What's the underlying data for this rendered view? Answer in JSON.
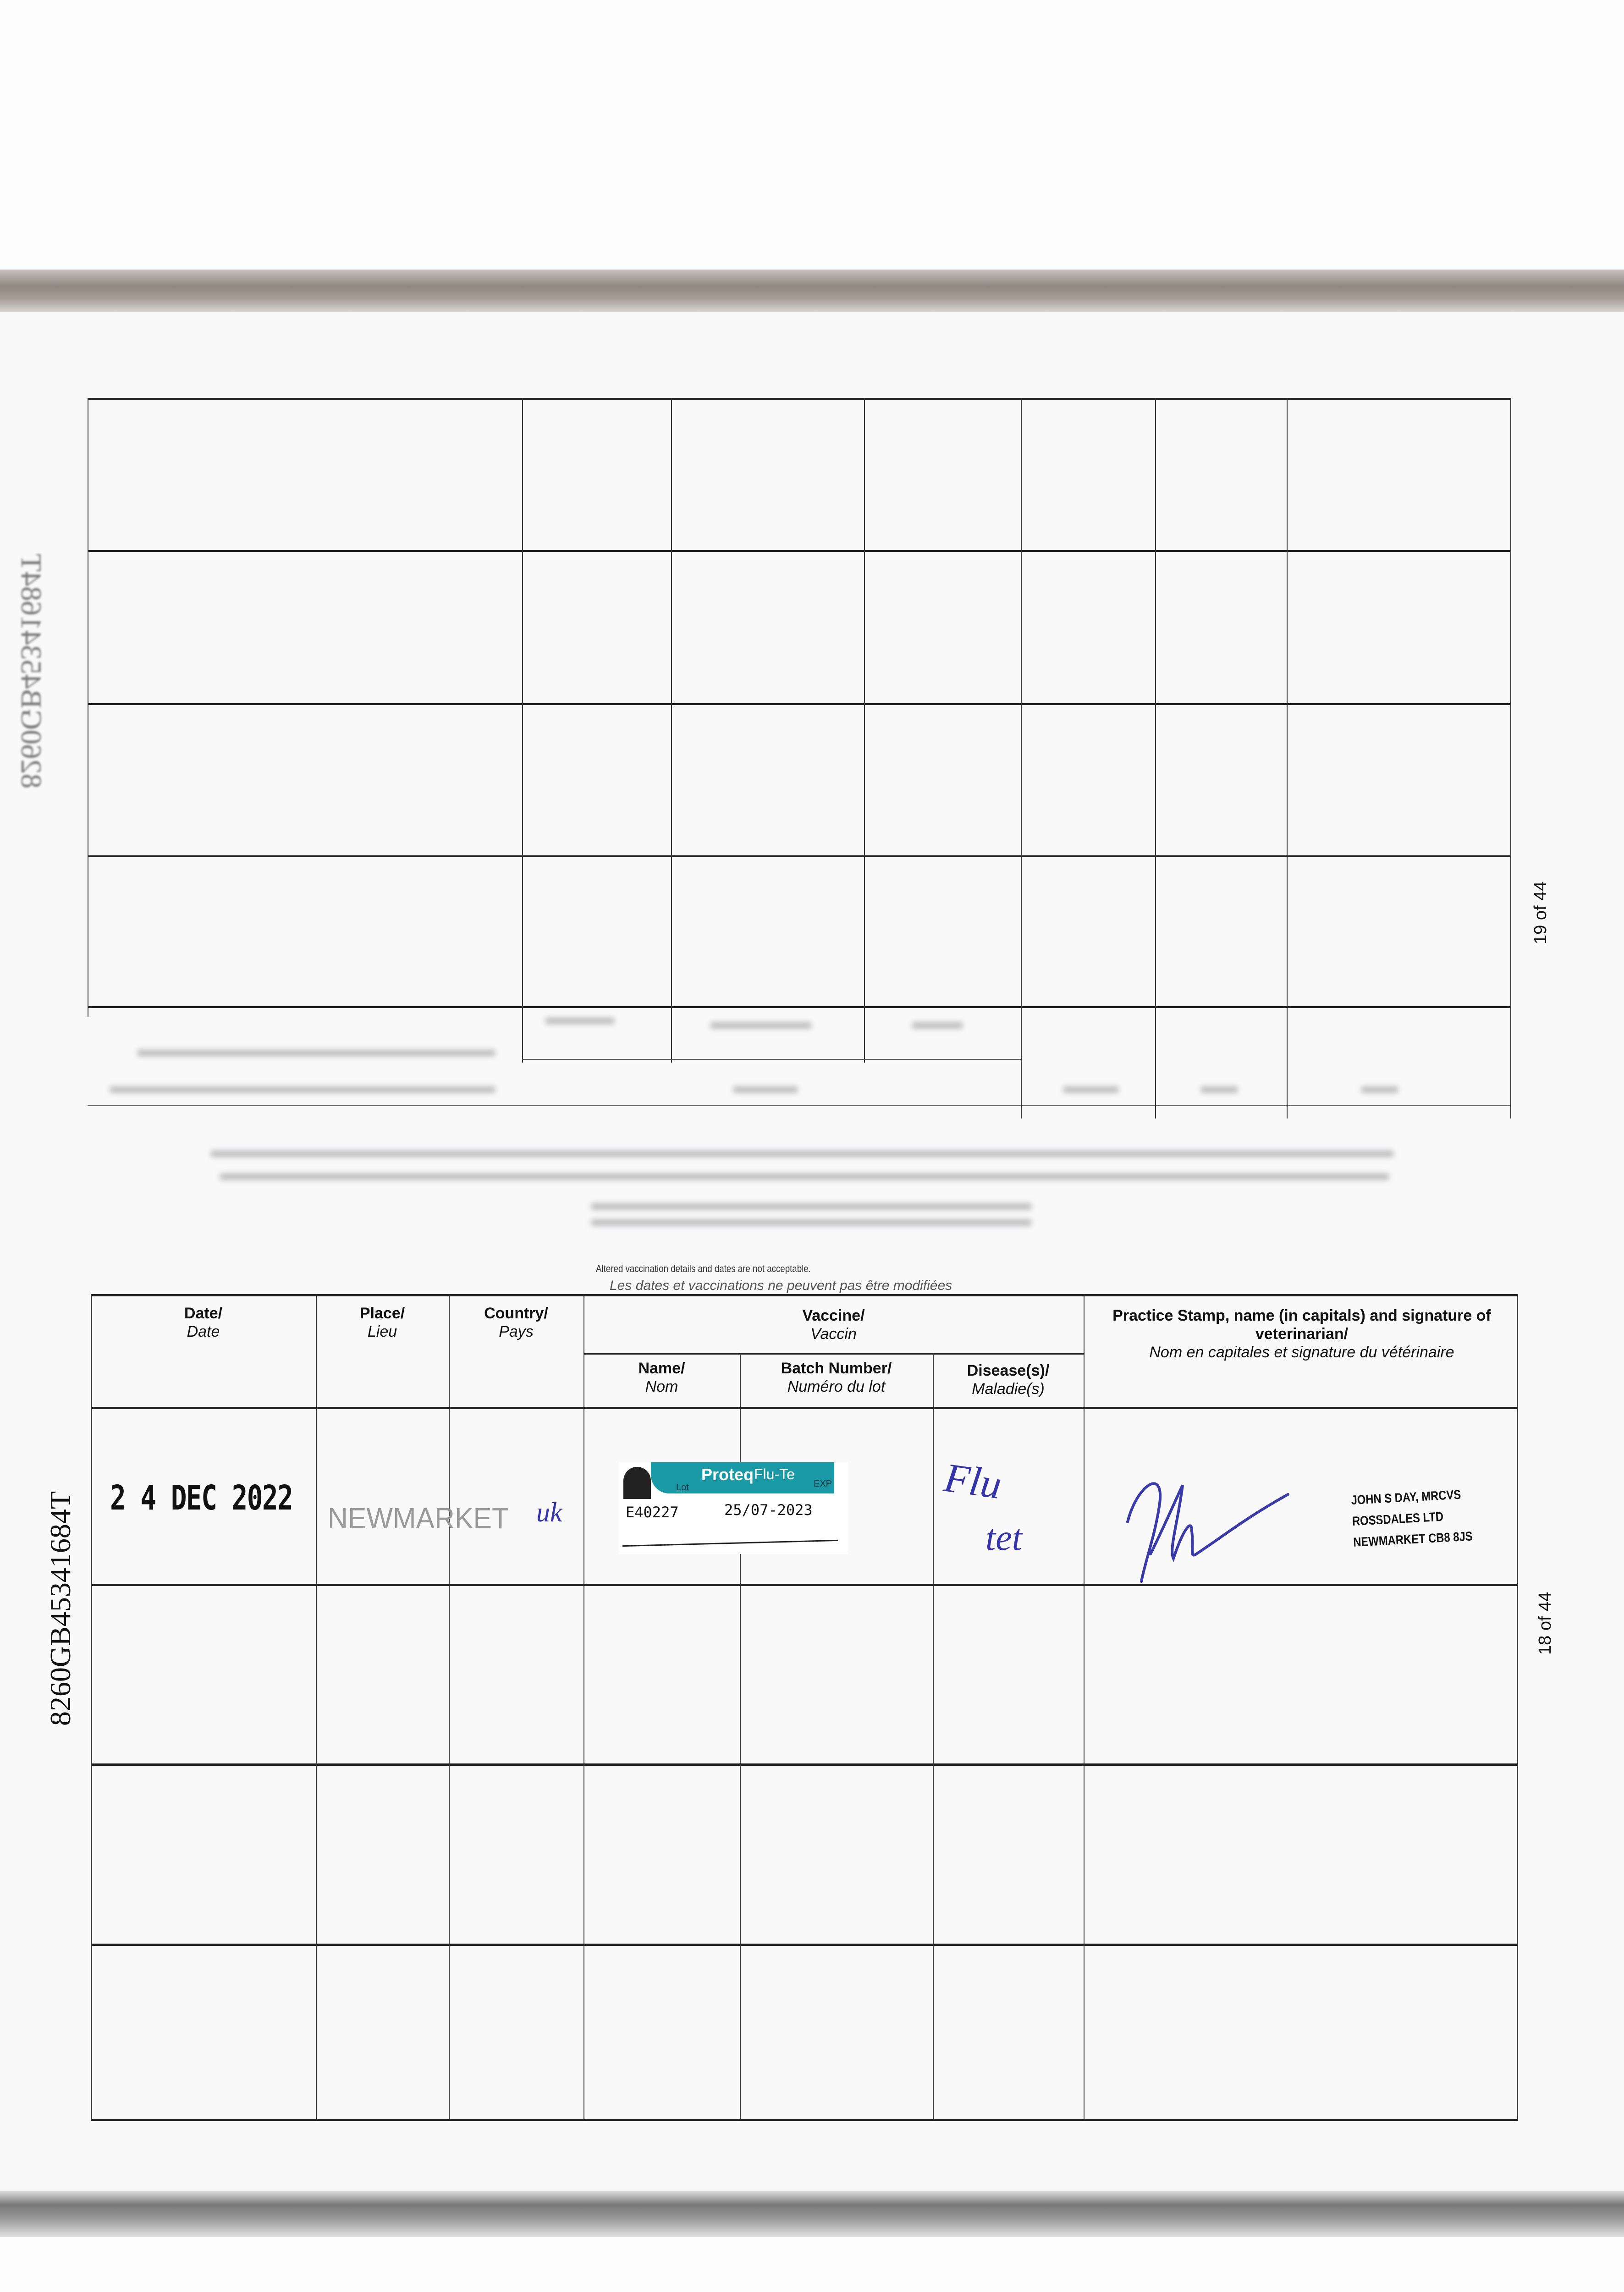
{
  "document": {
    "upper_page": {
      "page_number": "19 of 44",
      "id_mirrored": "8260GB45341684T"
    },
    "lower_page": {
      "notice_en": "Altered vaccination details and dates are not acceptable.",
      "notice_fr": "Les dates et vaccinations ne peuvent pas être modifiées",
      "page_number": "18 of 44",
      "side_id": "8260GB45341684T",
      "headers": {
        "date": {
          "en": "Date/",
          "fr": "Date"
        },
        "place": {
          "en": "Place/",
          "fr": "Lieu"
        },
        "country": {
          "en": "Country/",
          "fr": "Pays"
        },
        "vaccine": {
          "en": "Vaccine/",
          "fr": "Vaccin"
        },
        "name": {
          "en": "Name/",
          "fr": "Nom"
        },
        "batch": {
          "en": "Batch Number/",
          "fr": "Numéro du lot"
        },
        "disease": {
          "en": "Disease(s)/",
          "fr": "Maladie(s)"
        },
        "stamp": {
          "en": "Practice Stamp, name (in capitals) and signature of veterinarian/",
          "fr": "Nom en capitales et signature du vétérinaire"
        }
      },
      "entries": [
        {
          "date": "2 4 DEC 2022",
          "place": "NEWMARKET",
          "country": "uk",
          "vaccine_label": {
            "brand": "Proteq",
            "product": "Flu-Te",
            "lot_label": "Lot",
            "exp_label": "EXP",
            "lot": "E40227",
            "exp": "25/07-2023",
            "color": "#1a9aa6"
          },
          "disease": [
            "Flu",
            "tet"
          ],
          "stamp_lines": [
            "JOHN S DAY, MRCVS",
            "ROSSDALES LTD",
            "NEWMARKET CB8 8JS"
          ]
        }
      ]
    }
  }
}
